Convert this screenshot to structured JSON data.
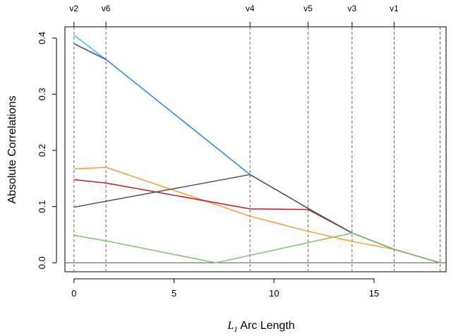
{
  "chart_data": {
    "type": "line",
    "title": "",
    "xlabel_math": "L",
    "xlabel_sub": "1",
    "xlabel_rest": " Arc Length",
    "ylabel": "Absolute Correlations",
    "xlim": [
      -0.45,
      18.6
    ],
    "ylim": [
      -0.016,
      0.42
    ],
    "x_ticks": [
      0,
      5,
      10,
      15
    ],
    "y_ticks": [
      0.0,
      0.1,
      0.2,
      0.3,
      0.4
    ],
    "y_tick_labels": [
      "0.0",
      "0.1",
      "0.2",
      "0.3",
      "0.4"
    ],
    "grid": false,
    "legend": "none",
    "breakpoints": [
      {
        "x": 0.0,
        "label": "v2"
      },
      {
        "x": 1.6,
        "label": "v6"
      },
      {
        "x": 8.8,
        "label": "v4"
      },
      {
        "x": 11.7,
        "label": "v5"
      },
      {
        "x": 13.9,
        "label": "v3"
      },
      {
        "x": 16.0,
        "label": "v1"
      },
      {
        "x": 18.3,
        "label": ""
      }
    ],
    "series": [
      {
        "color": "#1e88e5",
        "points": [
          [
            0,
            0.39
          ],
          [
            1.6,
            0.362
          ],
          [
            8.8,
            0.157
          ],
          [
            11.7,
            0.097
          ],
          [
            13.9,
            0.053
          ],
          [
            16.0,
            0.024
          ],
          [
            18.3,
            0.0
          ]
        ]
      },
      {
        "color": "#34c9c9",
        "points": [
          [
            0,
            0.405
          ],
          [
            1.6,
            0.362
          ]
        ]
      },
      {
        "color": "#5a3fc0",
        "points": [
          [
            0,
            0.39
          ],
          [
            1.6,
            0.362
          ]
        ]
      },
      {
        "color": "#ff9933",
        "points": [
          [
            0,
            0.167
          ],
          [
            1.6,
            0.17
          ],
          [
            8.8,
            0.083
          ],
          [
            11.7,
            0.056
          ],
          [
            13.9,
            0.038
          ],
          [
            16.0,
            0.024
          ],
          [
            18.3,
            0.0
          ]
        ]
      },
      {
        "color": "#b22222",
        "points": [
          [
            0,
            0.148
          ],
          [
            1.6,
            0.142
          ],
          [
            8.8,
            0.096
          ],
          [
            11.7,
            0.095
          ],
          [
            13.9,
            0.053
          ],
          [
            16.0,
            0.024
          ],
          [
            18.3,
            0.0
          ]
        ]
      },
      {
        "color": "#555555",
        "points": [
          [
            0,
            0.099
          ],
          [
            8.8,
            0.157
          ],
          [
            11.7,
            0.097
          ],
          [
            13.9,
            0.053
          ],
          [
            16.0,
            0.024
          ],
          [
            18.3,
            0.0
          ]
        ]
      },
      {
        "color": "#7cc46a",
        "points": [
          [
            0,
            0.049
          ],
          [
            1.6,
            0.039
          ],
          [
            7.1,
            0.0
          ],
          [
            13.9,
            0.053
          ],
          [
            16.0,
            0.024
          ],
          [
            18.3,
            0.0
          ]
        ]
      }
    ]
  }
}
